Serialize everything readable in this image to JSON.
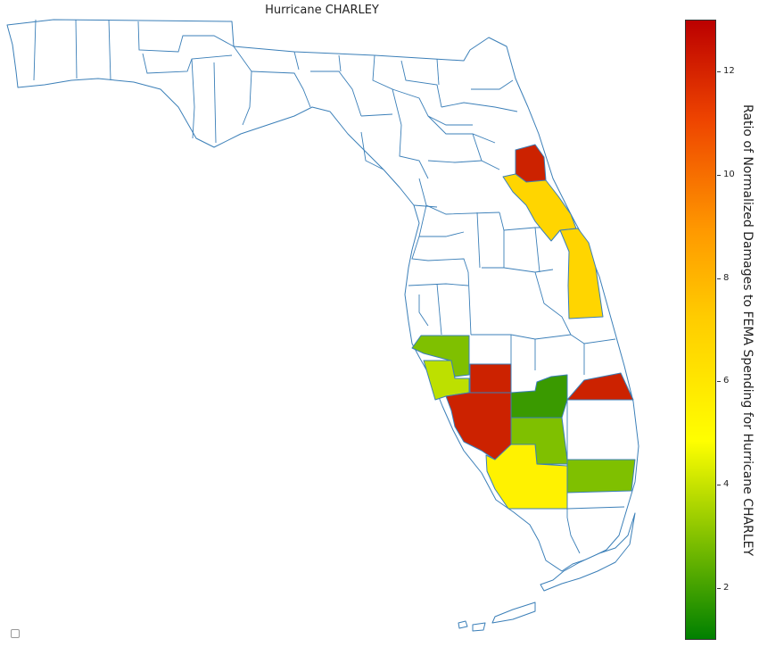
{
  "title": "Hurricane CHARLEY",
  "colorbar": {
    "label": "Ratio of Normalized Damages to FEMA Spending for Hurricane CHARLEY",
    "min": 1,
    "max": 13,
    "ticks": [
      "2",
      "4",
      "6",
      "8",
      "10",
      "12"
    ],
    "colors": {
      "low": "#008000",
      "mid": "#ffff00",
      "high": "#bb0000"
    }
  },
  "colors": {
    "outline": "#3b7fb8",
    "dark_red": "#cc2200",
    "yellow_orange": "#ffd500",
    "light_yellow": "#fff200",
    "yellow_green": "#bde000",
    "green": "#7fc000",
    "dark_green": "#3a9a00"
  },
  "legend": {
    "icon": "legend-box-icon"
  }
}
